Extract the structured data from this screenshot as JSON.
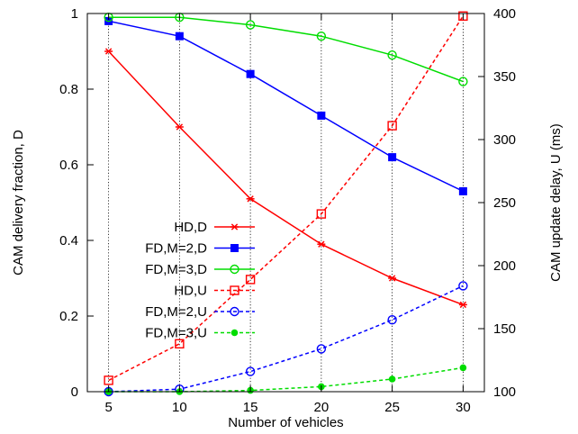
{
  "chart_data": {
    "type": "line",
    "title": "",
    "xlabel": "Number of vehicles",
    "ylabel_left": "CAM delivery fraction, D",
    "ylabel_right": "CAM update delay, U (ms)",
    "x": [
      5,
      10,
      15,
      20,
      25,
      30
    ],
    "x_ticks": [
      "5",
      "10",
      "15",
      "20",
      "25",
      "30"
    ],
    "xlim": [
      3.5,
      31.5
    ],
    "ylim_left": [
      0,
      1
    ],
    "y_ticks_left": [
      "0",
      "0.2",
      "0.4",
      "0.6",
      "0.8",
      "1"
    ],
    "ylim_right": [
      100,
      400
    ],
    "y_ticks_right": [
      "100",
      "150",
      "200",
      "250",
      "300",
      "350",
      "400"
    ],
    "grid": "vertical dotted lines at x ticks",
    "legend_position": "center-left",
    "series": [
      {
        "name": "HD,D",
        "axis": "left",
        "color": "#ff0000",
        "marker": "star",
        "dash": "solid",
        "values": [
          0.9,
          0.7,
          0.51,
          0.39,
          0.3,
          0.23
        ]
      },
      {
        "name": "FD,M=2,D",
        "axis": "left",
        "color": "#0000ff",
        "marker": "filled-square",
        "dash": "solid",
        "values": [
          0.98,
          0.94,
          0.84,
          0.73,
          0.62,
          0.53
        ]
      },
      {
        "name": "FD,M=3,D",
        "axis": "left",
        "color": "#00dd00",
        "marker": "open-circle",
        "dash": "solid",
        "values": [
          0.99,
          0.99,
          0.97,
          0.94,
          0.89,
          0.82
        ]
      },
      {
        "name": "HD,U",
        "axis": "right",
        "color": "#ff0000",
        "marker": "open-square",
        "dash": "dashed",
        "values": [
          109,
          138,
          189,
          241,
          311,
          398
        ]
      },
      {
        "name": "FD,M=2,U",
        "axis": "right",
        "color": "#0000ff",
        "marker": "open-circle",
        "dash": "dashed",
        "values": [
          100,
          102,
          116,
          134,
          157,
          184
        ]
      },
      {
        "name": "FD,M=3,U",
        "axis": "right",
        "color": "#00dd00",
        "marker": "filled-circle",
        "dash": "dashed",
        "values": [
          100,
          100,
          101,
          104,
          110,
          119
        ]
      }
    ]
  }
}
